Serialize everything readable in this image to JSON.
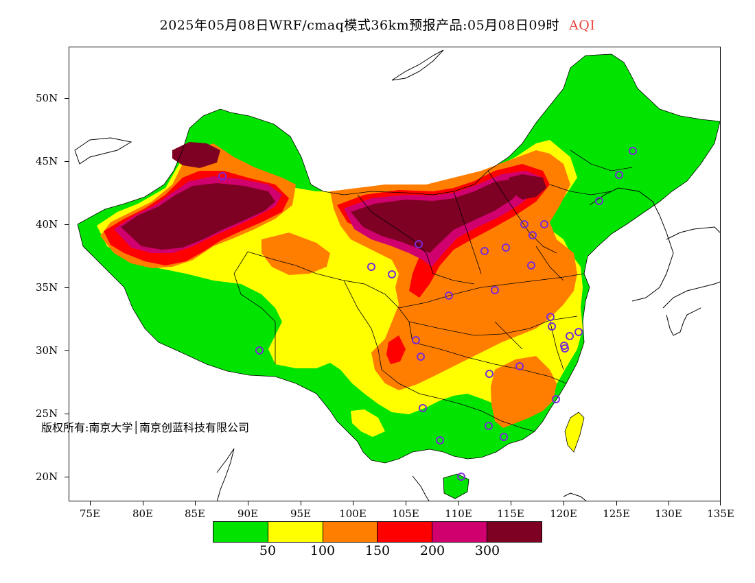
{
  "title": {
    "text": "2025年05月08日WRF/cmaq模式36km预报产品:05月08日09时",
    "variable": "AQI",
    "variable_color": "#e8433c"
  },
  "map": {
    "projection": "lat-lon",
    "lon_range": [
      73,
      135
    ],
    "lat_range": [
      18,
      54
    ],
    "y_axis_labels": [
      "50N",
      "45N",
      "40N",
      "35N",
      "30N",
      "25N",
      "20N"
    ],
    "x_axis_labels": [
      "75E",
      "80E",
      "85E",
      "90E",
      "95E",
      "100E",
      "105E",
      "110E",
      "115E",
      "120E",
      "125E",
      "130E",
      "135E"
    ],
    "copyright": "版权所有:南京大学│南京创蓝科技有限公司",
    "station_marker_color": "#7a2bd6",
    "boundary_color": "#000000"
  },
  "legend": {
    "bins": [
      {
        "color": "#00e400"
      },
      {
        "color": "#ffff00"
      },
      {
        "color": "#ff7e00"
      },
      {
        "color": "#ff0000"
      },
      {
        "color": "#d0006e"
      },
      {
        "color": "#7e0023"
      }
    ],
    "tick_labels": [
      "50",
      "100",
      "150",
      "200",
      "300"
    ]
  }
}
